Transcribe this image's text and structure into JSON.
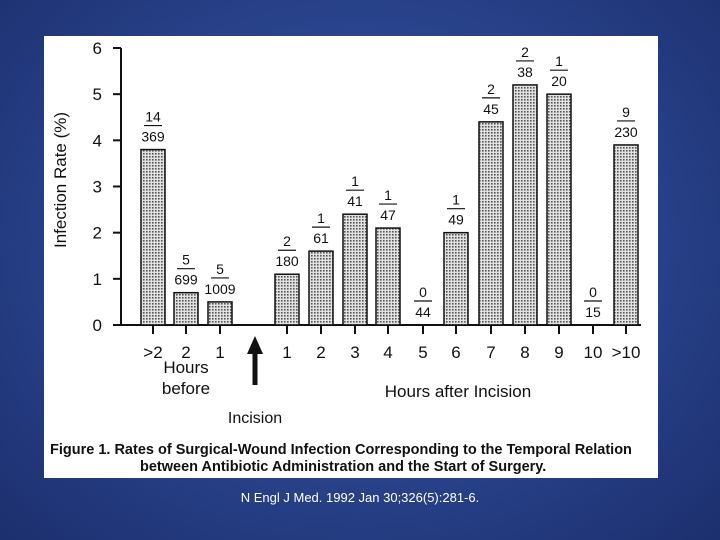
{
  "slide": {
    "colors": {
      "background": "#2b4690",
      "panel": "#ffffff",
      "bar_fill": "#e6e6e6",
      "ink": "#111111"
    },
    "caption_line1": "Figure 1. Rates of Surgical-Wound Infection Corresponding to the Temporal Relation",
    "caption_line2": "between Antibiotic Administration and the Start of Surgery.",
    "citation": "N Engl J Med. 1992 Jan 30;326(5):281-6."
  },
  "chart_data": {
    "type": "bar",
    "title": "",
    "ylabel": "Infection Rate (%)",
    "ylim": [
      0,
      6
    ],
    "yticks": [
      "0",
      "1",
      "2",
      "3",
      "4",
      "5",
      "6"
    ],
    "categories": [
      ">2",
      "2",
      "1",
      "1",
      "2",
      "3",
      "4",
      "5",
      "6",
      "7",
      "8",
      "9",
      "10",
      ">10"
    ],
    "before_categories": [
      ">2",
      "2",
      "1"
    ],
    "after_categories": [
      "1",
      "2",
      "3",
      "4",
      "5",
      "6",
      "7",
      "8",
      "9",
      "10",
      ">10"
    ],
    "before_values": [
      3.8,
      0.7,
      0.5
    ],
    "after_values": [
      1.1,
      1.6,
      2.4,
      2.1,
      0.0,
      2.0,
      4.4,
      5.2,
      5.0,
      0.0,
      3.9
    ],
    "before_numerators": [
      "14",
      "5",
      "5"
    ],
    "before_denominators": [
      "369",
      "699",
      "1009"
    ],
    "after_numerators": [
      "2",
      "1",
      "1",
      "1",
      "0",
      "1",
      "2",
      "2",
      "1",
      "0",
      "9"
    ],
    "after_denominators": [
      "180",
      "61",
      "41",
      "47",
      "44",
      "49",
      "45",
      "38",
      "20",
      "15",
      "230"
    ],
    "xlabel_before_line1": "Hours",
    "xlabel_before_line2": "before",
    "xlabel_after": "Hours after Incision",
    "marker_label": "Incision"
  }
}
